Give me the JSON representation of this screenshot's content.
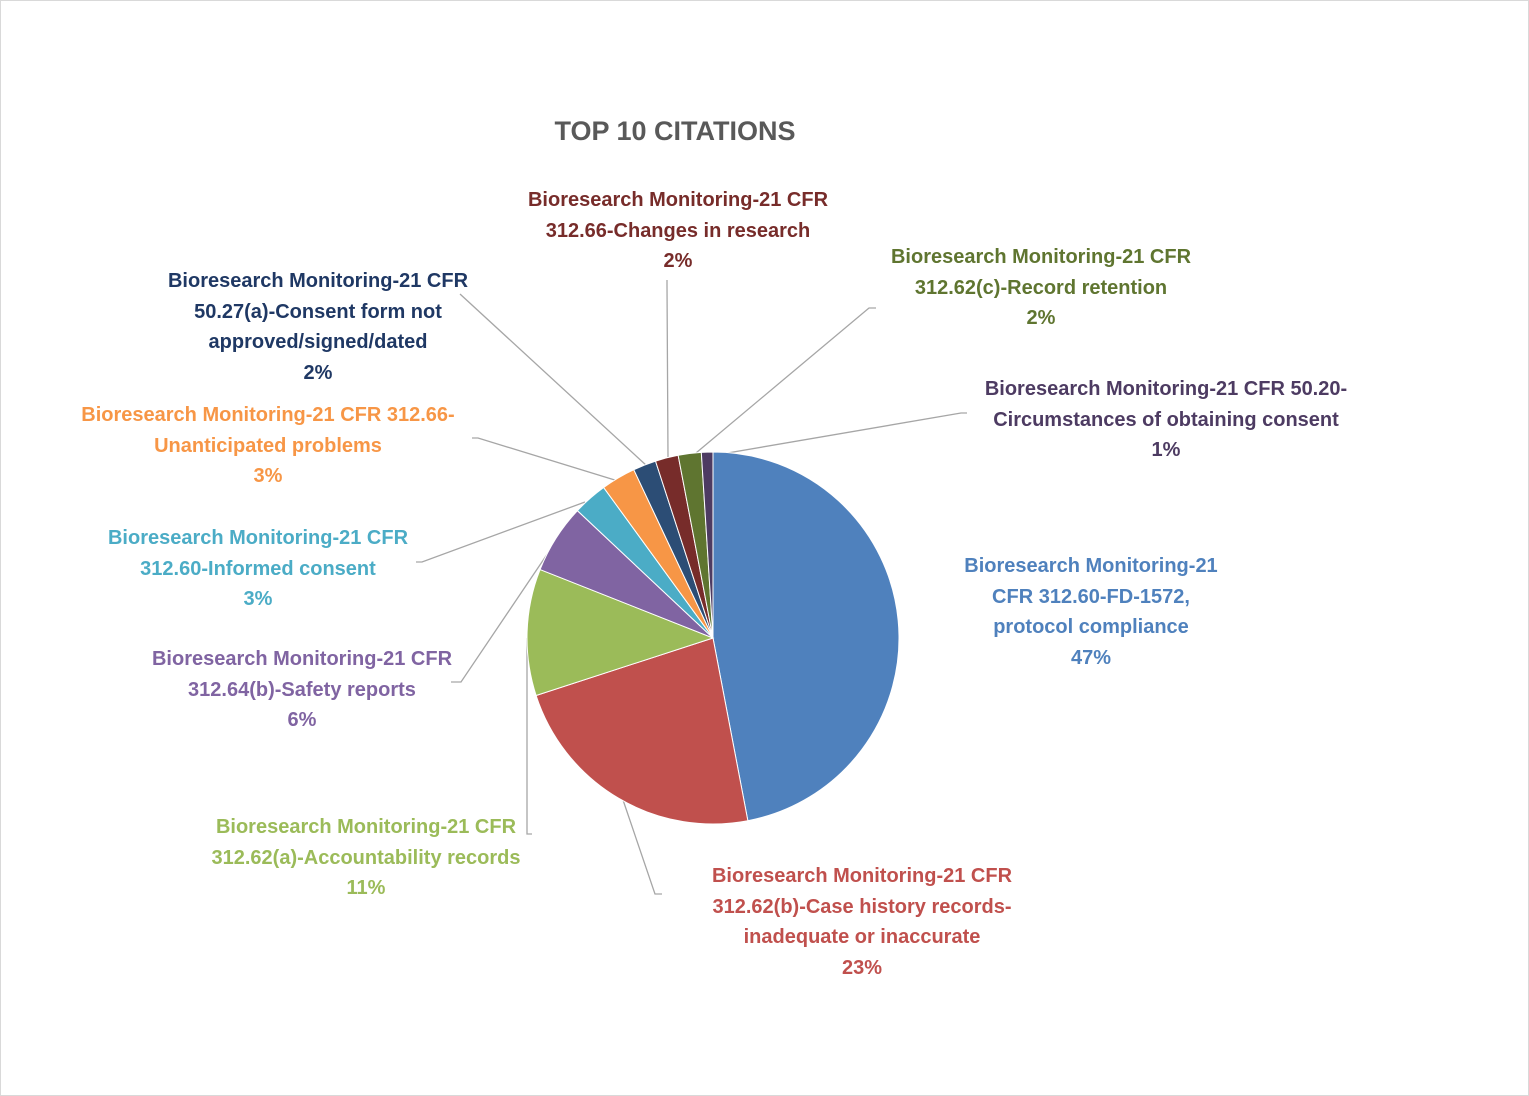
{
  "chart_data": {
    "type": "pie",
    "title": "TOP 10 CITATIONS",
    "start_angle_deg": 0,
    "direction": "clockwise",
    "slices": [
      {
        "lines": [
          "Bioresearch Monitoring-21",
          "CFR 312.60-FD-1572,",
          "protocol compliance"
        ],
        "value": 47,
        "pct_label": "47%",
        "color": "#4f81bd",
        "label_color": "#4f81bd"
      },
      {
        "lines": [
          "Bioresearch Monitoring-21 CFR",
          "312.62(b)-Case history records-",
          "inadequate or inaccurate"
        ],
        "value": 23,
        "pct_label": "23%",
        "color": "#c0504d",
        "label_color": "#c0504d"
      },
      {
        "lines": [
          "Bioresearch Monitoring-21 CFR",
          "312.62(a)-Accountability records"
        ],
        "value": 11,
        "pct_label": "11%",
        "color": "#9bbb59",
        "label_color": "#9bbb59"
      },
      {
        "lines": [
          "Bioresearch Monitoring-21 CFR",
          "312.64(b)-Safety reports"
        ],
        "value": 6,
        "pct_label": "6%",
        "color": "#8064a2",
        "label_color": "#8064a2"
      },
      {
        "lines": [
          "Bioresearch Monitoring-21 CFR",
          "312.60-Informed consent"
        ],
        "value": 3,
        "pct_label": "3%",
        "color": "#4bacc6",
        "label_color": "#4bacc6"
      },
      {
        "lines": [
          "Bioresearch Monitoring-21 CFR 312.66-",
          "Unanticipated problems"
        ],
        "value": 3,
        "pct_label": "3%",
        "color": "#f79646",
        "label_color": "#f79646"
      },
      {
        "lines": [
          "Bioresearch Monitoring-21 CFR",
          "50.27(a)-Consent form not",
          "approved/signed/dated"
        ],
        "value": 2,
        "pct_label": "2%",
        "color": "#2c4d75",
        "label_color": "#1f3864"
      },
      {
        "lines": [
          "Bioresearch Monitoring-21 CFR",
          "312.66-Changes in research"
        ],
        "value": 2,
        "pct_label": "2%",
        "color": "#772c2a",
        "label_color": "#772c2a"
      },
      {
        "lines": [
          "Bioresearch Monitoring-21 CFR",
          "312.62(c)-Record retention"
        ],
        "value": 2,
        "pct_label": "2%",
        "color": "#5f7530",
        "label_color": "#5f7530"
      },
      {
        "lines": [
          "Bioresearch Monitoring-21 CFR 50.20-",
          "Circumstances of obtaining consent"
        ],
        "value": 1,
        "pct_label": "1%",
        "color": "#4d3b62",
        "label_color": "#4d3b62"
      }
    ]
  }
}
